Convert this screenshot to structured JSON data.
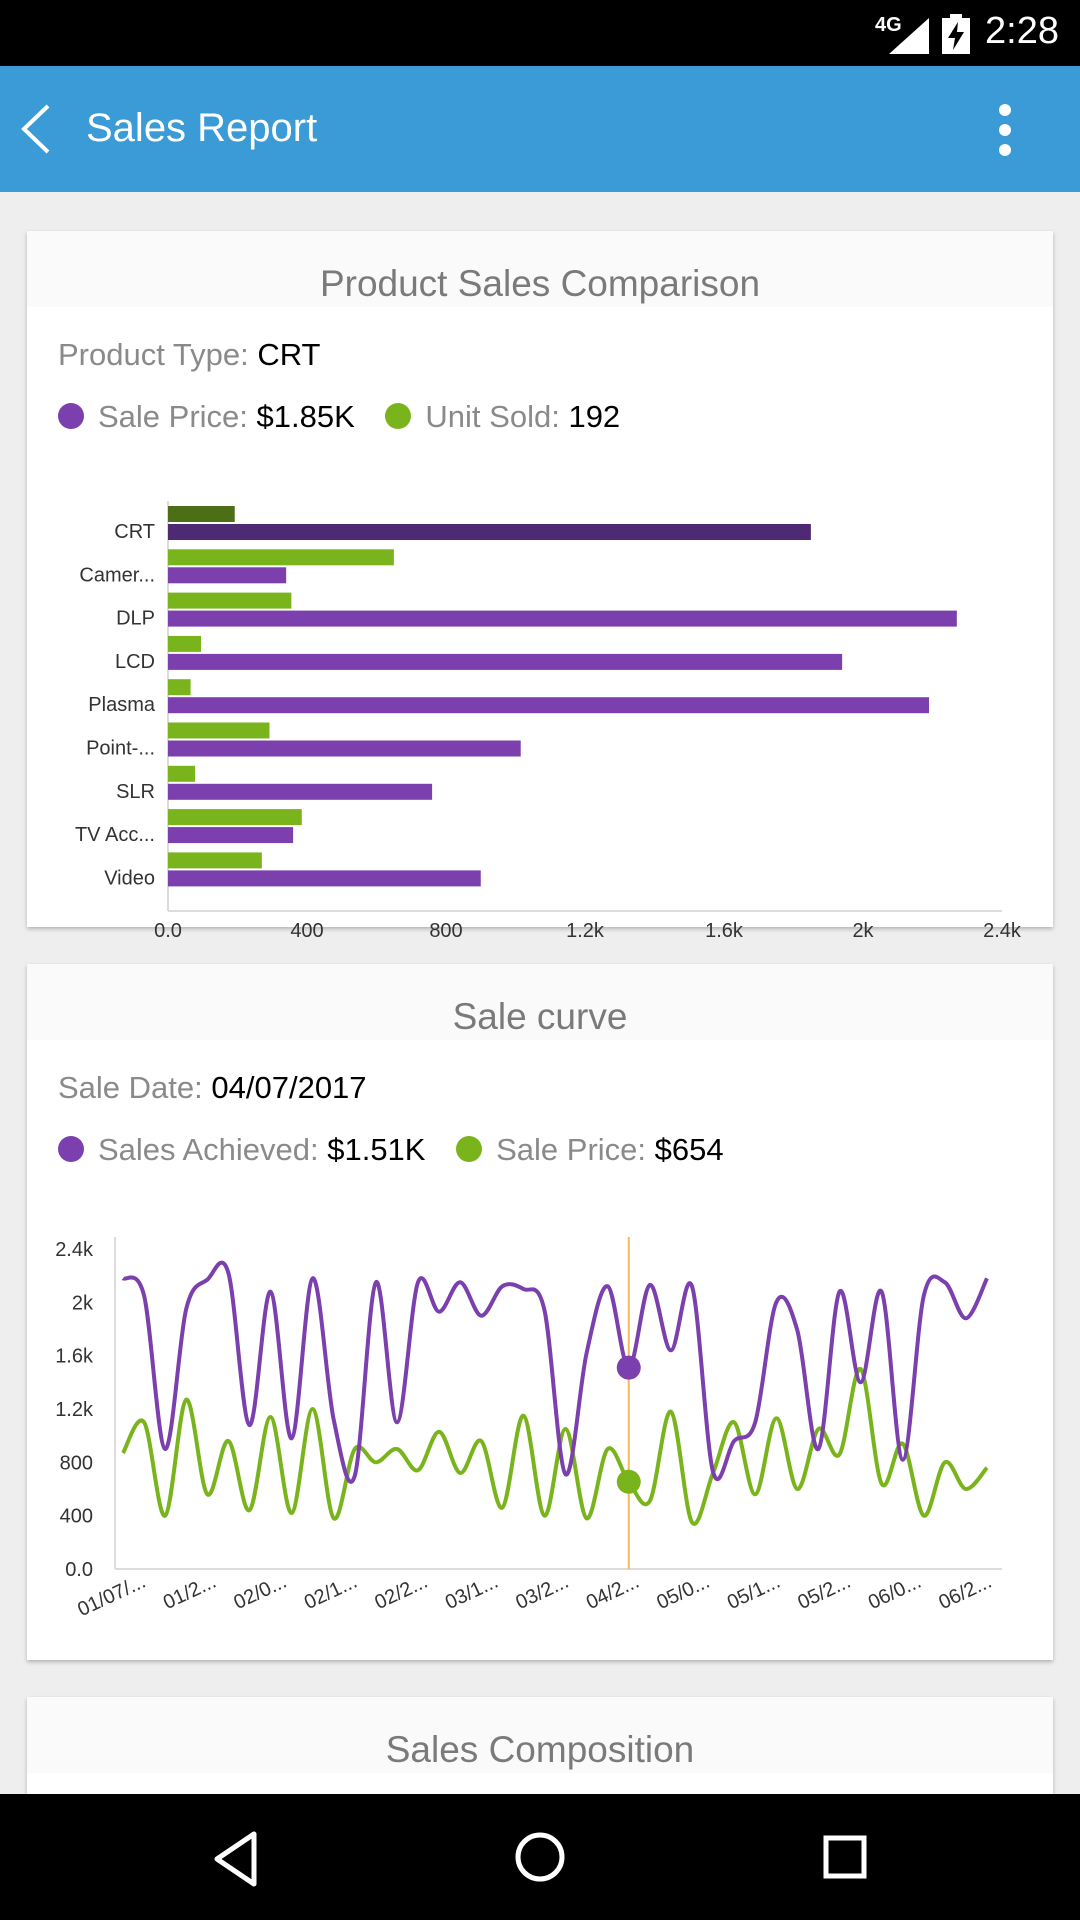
{
  "status_bar": {
    "network_label": "4G",
    "time": "2:28",
    "icons": [
      "signal-icon",
      "battery-charging-icon"
    ]
  },
  "app_bar": {
    "title": "Sales Report",
    "icons": [
      "back-arrow-icon",
      "overflow-menu-icon"
    ]
  },
  "colors": {
    "app_bar": "#3b9bd6",
    "purple": "#7b3fae",
    "purple_selected": "#4e2a72",
    "green": "#7ab41d",
    "green_selected": "#4b6e17",
    "cursor": "#f5b85a"
  },
  "product_card": {
    "title": "Product Sales Comparison",
    "product_type_label": "Product Type:",
    "product_type_value": "CRT",
    "legend": [
      {
        "label": "Sale Price:",
        "value": "$1.85K",
        "color": "#7b3fae"
      },
      {
        "label": "Unit Sold:",
        "value": "192",
        "color": "#7ab41d"
      }
    ]
  },
  "curve_card": {
    "title": "Sale curve",
    "sale_date_label": "Sale Date:",
    "sale_date_value": "04/07/2017",
    "legend": [
      {
        "label": "Sales Achieved:",
        "value": "$1.51K",
        "color": "#7b3fae"
      },
      {
        "label": "Sale Price:",
        "value": "$654",
        "color": "#7ab41d"
      }
    ]
  },
  "composition_card": {
    "title": "Sales Composition"
  },
  "nav_bar": {
    "icons": [
      "back-triangle-icon",
      "home-circle-icon",
      "recents-square-icon"
    ]
  },
  "chart_data": [
    {
      "type": "bar",
      "orientation": "horizontal",
      "categories": [
        "CRT",
        "Camer...",
        "DLP",
        "LCD",
        "Plasma",
        "Point-...",
        "SLR",
        "TV Acc...",
        "Video"
      ],
      "series": [
        {
          "name": "Unit Sold",
          "values": [
            192,
            650,
            355,
            95,
            65,
            292,
            78,
            385,
            270
          ]
        },
        {
          "name": "Sale Price",
          "values": [
            1850,
            340,
            2270,
            1940,
            2190,
            1015,
            760,
            360,
            900
          ]
        }
      ],
      "selected_category": "CRT",
      "xlim": [
        0,
        2400
      ],
      "xticks": [
        "0.0",
        "400",
        "800",
        "1.2k",
        "1.6k",
        "2k",
        "2.4k"
      ]
    },
    {
      "type": "line",
      "smooth": true,
      "x_labels": [
        "01/07/...",
        "01/2...",
        "02/0...",
        "02/1...",
        "02/2...",
        "03/1...",
        "03/2...",
        "04/2...",
        "05/0...",
        "05/1...",
        "05/2...",
        "06/0...",
        "06/2..."
      ],
      "yticks": [
        "0.0",
        "400",
        "800",
        "1.2k",
        "1.6k",
        "2k",
        "2.4k"
      ],
      "ylim": [
        0,
        2400
      ],
      "series": [
        {
          "name": "Sales Achieved",
          "values": [
            2180,
            2050,
            900,
            1950,
            2170,
            2220,
            1080,
            2080,
            980,
            2180,
            1120,
            700,
            2150,
            1100,
            2150,
            1930,
            2150,
            1900,
            2120,
            2100,
            1940,
            710,
            1620,
            2120,
            1510,
            2130,
            1640,
            2120,
            730,
            960,
            1100,
            2000,
            1790,
            900,
            2080,
            1400,
            2080,
            820,
            2050,
            2150,
            1880,
            2180
          ]
        },
        {
          "name": "Sale Price",
          "values": [
            870,
            1100,
            400,
            1270,
            560,
            960,
            440,
            1140,
            420,
            1200,
            380,
            900,
            800,
            900,
            740,
            1030,
            720,
            960,
            460,
            1150,
            400,
            1050,
            380,
            900,
            654,
            510,
            1180,
            350,
            720,
            1100,
            560,
            1130,
            600,
            1050,
            860,
            1500,
            640,
            940,
            400,
            800,
            600,
            760
          ]
        }
      ],
      "selected_index": 24,
      "selected_x_label": "04/07/2017"
    }
  ]
}
